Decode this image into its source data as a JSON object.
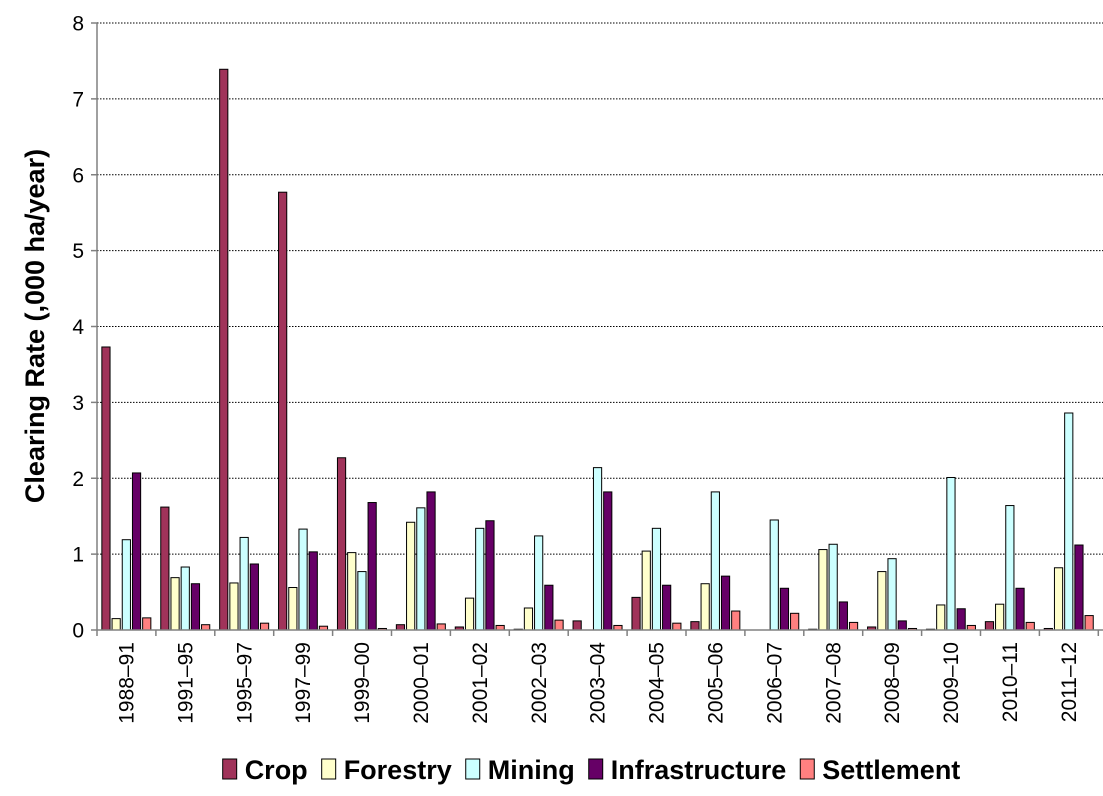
{
  "chart_data": {
    "type": "bar",
    "title": "",
    "xlabel": "",
    "ylabel": "Clearing Rate (,000 ha/year)",
    "ylim": [
      0,
      8
    ],
    "yticks": [
      0,
      1,
      2,
      3,
      4,
      5,
      6,
      7,
      8
    ],
    "grid": "horizontal dotted",
    "legend_position": "bottom",
    "categories": [
      "1988–91",
      "1991–95",
      "1995–97",
      "1997–99",
      "1999–00",
      "2000–01",
      "2001–02",
      "2002–03",
      "2003–04",
      "2004–05",
      "2005–06",
      "2006–07",
      "2007–08",
      "2008–09",
      "2009–10",
      "2010–11",
      "2011–12"
    ],
    "series": [
      {
        "name": "Crop",
        "color": "#A0335A",
        "values": [
          3.73,
          1.62,
          7.39,
          5.77,
          2.27,
          0.07,
          0.04,
          0.01,
          0.12,
          0.43,
          0.11,
          0.0,
          0.01,
          0.04,
          0.01,
          0.11,
          0.02
        ]
      },
      {
        "name": "Forestry",
        "color": "#FFFFCC",
        "values": [
          0.15,
          0.69,
          0.62,
          0.56,
          1.02,
          1.42,
          0.42,
          0.29,
          0.0,
          1.04,
          0.61,
          0.0,
          1.06,
          0.77,
          0.33,
          0.34,
          0.82
        ]
      },
      {
        "name": "Mining",
        "color": "#CCFFFF",
        "values": [
          1.19,
          0.83,
          1.22,
          1.33,
          0.77,
          1.61,
          1.34,
          1.24,
          2.14,
          1.34,
          1.82,
          1.45,
          1.13,
          0.94,
          2.01,
          1.64,
          2.86
        ]
      },
      {
        "name": "Infrastructure",
        "color": "#660066",
        "values": [
          2.07,
          0.61,
          0.87,
          1.03,
          1.68,
          1.82,
          1.44,
          0.59,
          1.82,
          0.59,
          0.71,
          0.55,
          0.37,
          0.12,
          0.28,
          0.55,
          1.12
        ]
      },
      {
        "name": "Settlement",
        "color": "#FF8080",
        "values": [
          0.16,
          0.07,
          0.09,
          0.05,
          0.02,
          0.08,
          0.06,
          0.13,
          0.06,
          0.09,
          0.25,
          0.22,
          0.1,
          0.02,
          0.06,
          0.1,
          0.19
        ]
      }
    ]
  },
  "style": {
    "bar_outline": "#000000",
    "grid_color": "#000000",
    "axis_color": "#808080",
    "background": "#FFFFFF"
  }
}
